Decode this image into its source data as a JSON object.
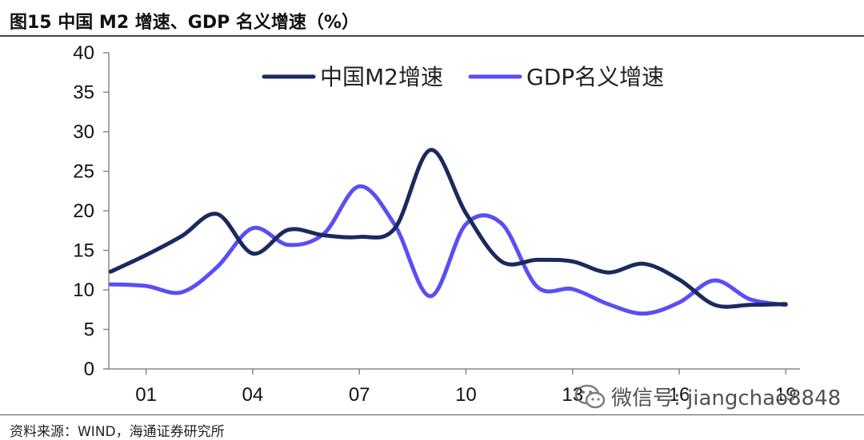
{
  "header": {
    "title": "图15 中国 M2 增速、GDP 名义增速（%）"
  },
  "footer": {
    "source": "资料来源：WIND，海通证券研究所"
  },
  "watermark": {
    "text": "微信号: jiangchao8848"
  },
  "chart_data": {
    "type": "line",
    "title": "图15 中国 M2 增速、GDP 名义增速（%）",
    "xlabel": "",
    "ylabel": "",
    "ylim": [
      0,
      40
    ],
    "yticks": [
      0,
      5,
      10,
      15,
      20,
      25,
      30,
      35,
      40
    ],
    "x": [
      2000,
      2001,
      2002,
      2003,
      2004,
      2005,
      2006,
      2007,
      2008,
      2009,
      2010,
      2011,
      2012,
      2013,
      2014,
      2015,
      2016,
      2017,
      2018,
      2019
    ],
    "xtick_labels": [
      {
        "x": 2001,
        "label": "01"
      },
      {
        "x": 2004,
        "label": "04"
      },
      {
        "x": 2007,
        "label": "07"
      },
      {
        "x": 2010,
        "label": "10"
      },
      {
        "x": 2013,
        "label": "13"
      },
      {
        "x": 2016,
        "label": "16"
      },
      {
        "x": 2019,
        "label": "19"
      }
    ],
    "legend_position": "top",
    "series": [
      {
        "name": "中国M2增速",
        "color": "#1a2a5e",
        "values": [
          12.3,
          14.4,
          16.8,
          19.6,
          14.6,
          17.6,
          16.9,
          16.7,
          17.8,
          27.7,
          19.7,
          13.6,
          13.8,
          13.6,
          12.2,
          13.3,
          11.3,
          8.1,
          8.1,
          8.2
        ]
      },
      {
        "name": "GDP名义增速",
        "color": "#5b4ef2",
        "values": [
          10.7,
          10.5,
          9.7,
          12.9,
          17.8,
          15.7,
          17.1,
          23.1,
          18.2,
          9.2,
          18.3,
          18.4,
          10.4,
          10.1,
          8.2,
          7.0,
          8.4,
          11.2,
          8.8,
          8.1
        ]
      }
    ]
  }
}
